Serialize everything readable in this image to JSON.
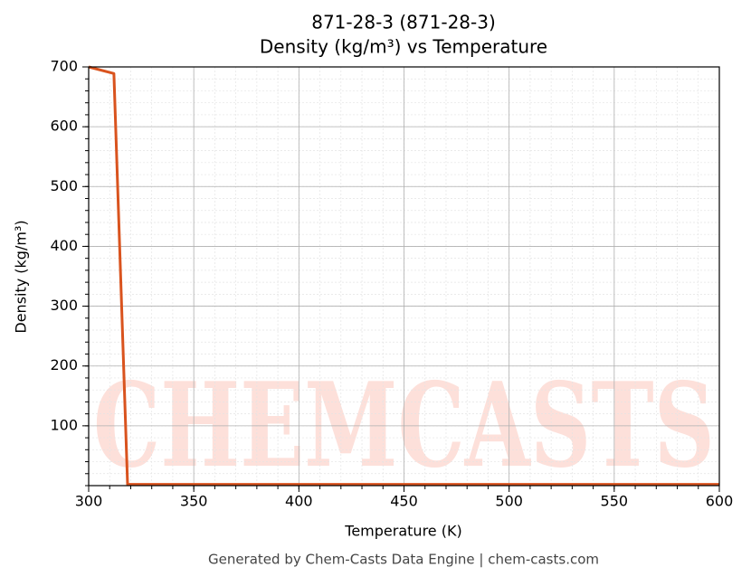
{
  "chart_data": {
    "type": "line",
    "title": "871-28-3 (871-28-3)",
    "subtitle": "Density (kg/m³) vs Temperature",
    "x_label": "Temperature (K)",
    "y_label": "Density (kg/m³)",
    "footer": "Generated by Chem-Casts Data Engine | chem-casts.com",
    "watermark": "CHEMCASTS",
    "x": [
      300,
      312,
      318.5,
      600
    ],
    "series": [
      {
        "name": "Density",
        "color": "#d9531e",
        "values": [
          700,
          689,
          2,
          2
        ]
      }
    ],
    "xlim": [
      300,
      600
    ],
    "xticks": [
      300,
      350,
      400,
      450,
      500,
      550,
      600
    ],
    "ylim": [
      0,
      700
    ],
    "yticks": [
      100,
      200,
      300,
      400,
      500,
      600,
      700
    ],
    "grid": true
  }
}
